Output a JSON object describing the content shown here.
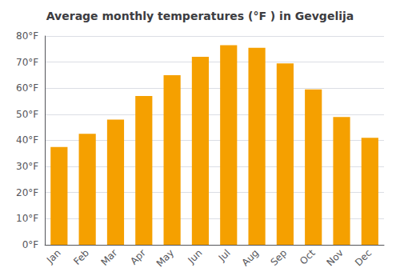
{
  "chart_data": {
    "type": "bar",
    "title": "Average monthly temperatures (°F ) in Gevgelija",
    "categories": [
      "Jan",
      "Feb",
      "Mar",
      "Apr",
      "May",
      "Jun",
      "Jul",
      "Aug",
      "Sep",
      "Oct",
      "Nov",
      "Dec"
    ],
    "values": [
      37.5,
      42.5,
      48.0,
      57.0,
      65.0,
      72.0,
      76.5,
      75.5,
      69.5,
      59.5,
      49.0,
      41.0
    ],
    "color": "#F5A000",
    "ylim": [
      0,
      80
    ],
    "yticks": [
      {
        "value": 0,
        "label": "0°F"
      },
      {
        "value": 10,
        "label": "10°F"
      },
      {
        "value": 20,
        "label": "20°F"
      },
      {
        "value": 30,
        "label": "30°F"
      },
      {
        "value": 40,
        "label": "40°F"
      },
      {
        "value": 50,
        "label": "50°F"
      },
      {
        "value": 60,
        "label": "60°F"
      },
      {
        "value": 70,
        "label": "70°F"
      },
      {
        "value": 80,
        "label": "80°F"
      }
    ],
    "grid": true
  }
}
